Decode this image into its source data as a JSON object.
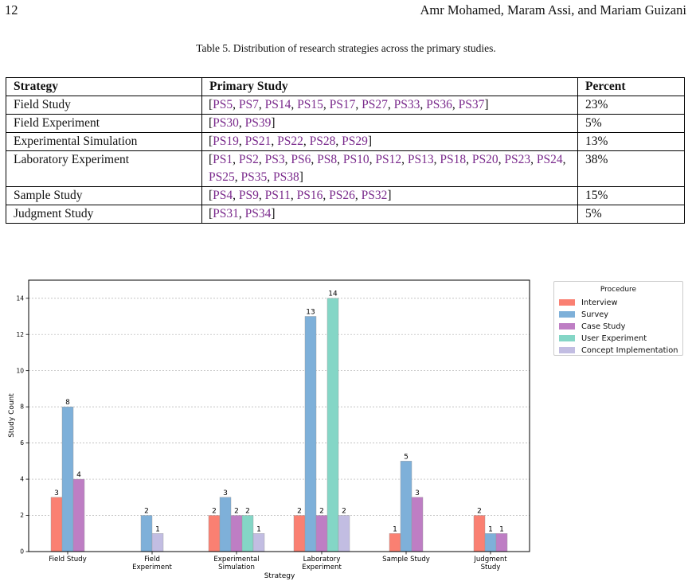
{
  "header": {
    "page_number": "12",
    "authors": "Amr Mohamed, Maram Assi, and Mariam Guizani"
  },
  "table": {
    "caption": "Table 5.  Distribution of research strategies across the primary studies.",
    "columns": [
      "Strategy",
      "Primary Study",
      "Percent"
    ],
    "rows": [
      {
        "strategy": "Field Study",
        "studies": [
          "PS5",
          "PS7",
          "PS14",
          "PS15",
          "PS17",
          "PS27",
          "PS33",
          "PS36",
          "PS37"
        ],
        "percent": "23%"
      },
      {
        "strategy": "Field Experiment",
        "studies": [
          "PS30",
          "PS39"
        ],
        "percent": "5%"
      },
      {
        "strategy": "Experimental Simulation",
        "studies": [
          "PS19",
          "PS21",
          "PS22",
          "PS28",
          "PS29"
        ],
        "percent": "13%"
      },
      {
        "strategy": "Laboratory Experiment",
        "studies": [
          "PS1",
          "PS2",
          "PS3",
          "PS6",
          "PS8",
          "PS10",
          "PS12",
          "PS13",
          "PS18",
          "PS20",
          "PS23",
          "PS24",
          "PS25",
          "PS35",
          "PS38"
        ],
        "percent": "38%"
      },
      {
        "strategy": "Sample Study",
        "studies": [
          "PS4",
          "PS9",
          "PS11",
          "PS16",
          "PS26",
          "PS32"
        ],
        "percent": "15%"
      },
      {
        "strategy": "Judgment Study",
        "studies": [
          "PS31",
          "PS34"
        ],
        "percent": "5%"
      }
    ]
  },
  "chart_data": {
    "type": "bar",
    "xlabel": "Strategy",
    "ylabel": "Study Count",
    "ylim": [
      0,
      15
    ],
    "yticks": [
      0,
      2,
      4,
      6,
      8,
      10,
      12,
      14
    ],
    "grid": "horizontal dotted",
    "legend_title": "Procedure",
    "legend_position": "outside-top-right",
    "categories": [
      [
        "Field Study"
      ],
      [
        "Field",
        "Experiment"
      ],
      [
        "Experimental",
        "Simulation"
      ],
      [
        "Laboratory",
        "Experiment"
      ],
      [
        "Sample Study"
      ],
      [
        "Judgment",
        "Study"
      ]
    ],
    "series": [
      {
        "name": "Interview",
        "color": "#fa8072",
        "values": [
          3,
          0,
          2,
          2,
          1,
          2
        ]
      },
      {
        "name": "Survey",
        "color": "#7eb0d9",
        "values": [
          8,
          2,
          3,
          13,
          5,
          1
        ]
      },
      {
        "name": "Case Study",
        "color": "#be7ec4",
        "values": [
          4,
          0,
          2,
          2,
          3,
          1
        ]
      },
      {
        "name": "User Experiment",
        "color": "#84d6c6",
        "values": [
          0,
          0,
          2,
          14,
          0,
          0
        ]
      },
      {
        "name": "Concept Implementation",
        "color": "#c2bde2",
        "values": [
          0,
          1,
          1,
          2,
          0,
          0
        ]
      }
    ]
  }
}
